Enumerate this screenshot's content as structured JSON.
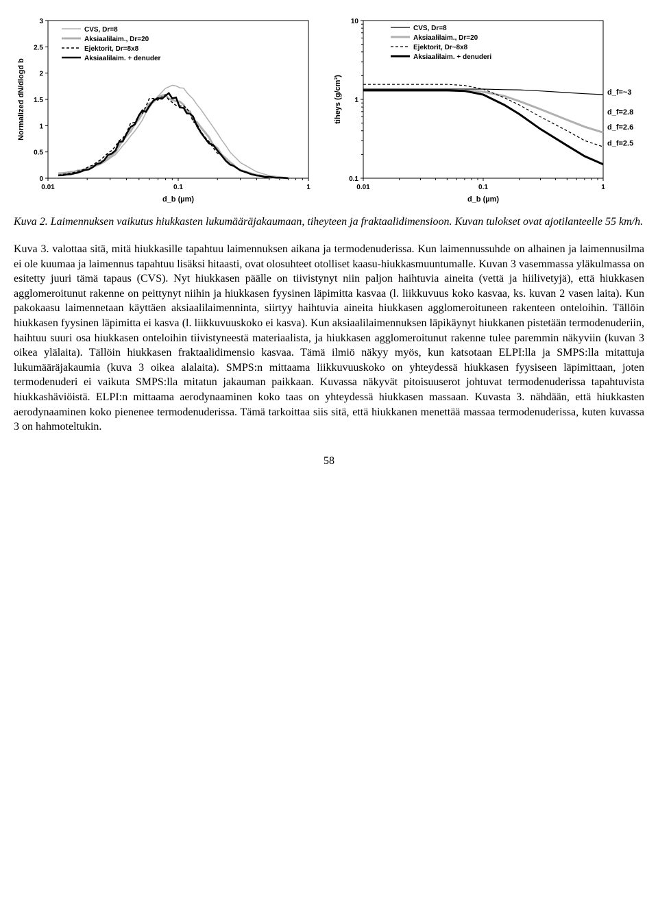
{
  "chart_left": {
    "type": "line",
    "ylabel": "Normalized dN/dlogd b",
    "xlabel": "d_b (µm)",
    "xlim_log": [
      0.01,
      1
    ],
    "ylim": [
      0,
      3
    ],
    "ytick_step": 0.5,
    "legend": [
      {
        "label": "CVS, Dr=8",
        "color": "#b0b0b0",
        "width": 1.5,
        "dash": ""
      },
      {
        "label": "Aksiaalilaim., Dr=20",
        "color": "#b0b0b0",
        "width": 3.0,
        "dash": ""
      },
      {
        "label": "Ejektorit, Dr=8x8",
        "color": "#000000",
        "width": 1.5,
        "dash": "4,3"
      },
      {
        "label": "Aksiaalilaim. + denuder",
        "color": "#000000",
        "width": 2.5,
        "dash": ""
      }
    ],
    "x_points": [
      0.012,
      0.015,
      0.018,
      0.022,
      0.027,
      0.033,
      0.04,
      0.05,
      0.06,
      0.075,
      0.09,
      0.11,
      0.13,
      0.16,
      0.2,
      0.25,
      0.3,
      0.4,
      0.5,
      0.7
    ],
    "series": {
      "cvs": [
        0.1,
        0.12,
        0.15,
        0.2,
        0.3,
        0.45,
        0.7,
        1.0,
        1.35,
        1.65,
        1.78,
        1.7,
        1.5,
        1.2,
        0.85,
        0.5,
        0.3,
        0.12,
        0.05,
        0.01
      ],
      "aks20": [
        0.08,
        0.12,
        0.15,
        0.22,
        0.35,
        0.5,
        0.8,
        1.1,
        1.4,
        1.55,
        1.52,
        1.4,
        1.15,
        0.85,
        0.55,
        0.3,
        0.15,
        0.06,
        0.02,
        0.0
      ],
      "ejekt": [
        0.06,
        0.1,
        0.15,
        0.25,
        0.4,
        0.6,
        0.9,
        1.2,
        1.45,
        1.55,
        1.5,
        1.35,
        1.1,
        0.8,
        0.5,
        0.28,
        0.14,
        0.05,
        0.02,
        0.0
      ],
      "denuder": [
        0.05,
        0.08,
        0.12,
        0.2,
        0.35,
        0.55,
        0.85,
        1.15,
        1.45,
        1.58,
        1.55,
        1.4,
        1.12,
        0.8,
        0.5,
        0.28,
        0.14,
        0.05,
        0.02,
        0.0
      ]
    },
    "noise": 0.15
  },
  "chart_right": {
    "type": "line-loglog",
    "ylabel": "tiheys (g/cm³)",
    "xlabel": "d_b (µm)",
    "xlim_log": [
      0.01,
      1
    ],
    "ylim_log": [
      0.1,
      10
    ],
    "legend": [
      {
        "label": "CVS, Dr=8",
        "color": "#000000",
        "width": 1.2,
        "dash": ""
      },
      {
        "label": "Aksiaalilaim., Dr=20",
        "color": "#b0b0b0",
        "width": 3.0,
        "dash": ""
      },
      {
        "label": "Ejektorit, Dr~8x8",
        "color": "#000000",
        "width": 1.2,
        "dash": "4,3"
      },
      {
        "label": "Aksiaalilaim. + denuderi",
        "color": "#000000",
        "width": 3.0,
        "dash": ""
      }
    ],
    "x_points": [
      0.01,
      0.015,
      0.02,
      0.03,
      0.05,
      0.07,
      0.1,
      0.15,
      0.2,
      0.3,
      0.5,
      0.7,
      1.0
    ],
    "series": {
      "cvs": [
        1.35,
        1.35,
        1.35,
        1.35,
        1.35,
        1.35,
        1.35,
        1.33,
        1.32,
        1.28,
        1.22,
        1.18,
        1.15
      ],
      "aks20": [
        1.3,
        1.3,
        1.3,
        1.3,
        1.3,
        1.3,
        1.25,
        1.1,
        0.95,
        0.75,
        0.55,
        0.45,
        0.38
      ],
      "ejekt": [
        1.55,
        1.55,
        1.55,
        1.55,
        1.55,
        1.5,
        1.35,
        1.05,
        0.85,
        0.6,
        0.4,
        0.3,
        0.25
      ],
      "denuder": [
        1.3,
        1.3,
        1.3,
        1.3,
        1.3,
        1.28,
        1.15,
        0.85,
        0.65,
        0.42,
        0.26,
        0.19,
        0.15
      ]
    },
    "annotations": [
      {
        "text": "d_f=~3",
        "y": 1.25
      },
      {
        "text": "d_f=2.8",
        "y": 0.7
      },
      {
        "text": "d_f=2.6",
        "y": 0.45
      },
      {
        "text": "d_f=2.5",
        "y": 0.28
      }
    ]
  },
  "caption": {
    "title": "Kuva 2.",
    "body": "Laimennuksen vaikutus hiukkasten lukumääräjakaumaan, tiheyteen ja fraktaalidimensioon. Kuvan tulokset ovat ajotilanteelle 55 km/h."
  },
  "paragraph": "Kuva 3. valottaa sitä, mitä hiukkasille tapahtuu laimennuksen aikana ja termodenuderissa. Kun laimennussuhde on alhainen ja laimennusilma ei ole kuumaa ja laimennus tapahtuu lisäksi hitaasti, ovat olosuhteet otolliset kaasu-hiukkasmuuntumalle. Kuvan 3 vasemmassa yläkulmassa on esitetty juuri tämä tapaus (CVS). Nyt hiukkasen päälle on tiivistynyt niin paljon haihtuvia aineita (vettä ja hiilivetyjä), että hiukkasen agglomeroitunut rakenne on peittynyt niihin ja hiukkasen fyysinen läpimitta kasvaa (l. liikkuvuus koko kasvaa, ks. kuvan 2 vasen laita). Kun pakokaasu laimennetaan käyttäen aksiaalilaimenninta, siirtyy haihtuvia aineita hiukkasen agglomeroituneen rakenteen onteloihin. Tällöin hiukkasen fyysinen läpimitta ei kasva (l. liikkuvuuskoko ei kasva). Kun aksiaalilaimennuksen läpikäynyt hiukkanen pistetään termodenuderiin, haihtuu suuri osa hiukkasen onteloihin tiivistyneestä materiaalista, ja hiukkasen agglomeroitunut rakenne tulee paremmin näkyviin (kuvan 3 oikea ylälaita). Tällöin hiukkasen fraktaalidimensio kasvaa. Tämä ilmiö näkyy myös, kun katsotaan ELPI:lla ja SMPS:lla mitattuja lukumääräjakaumia (kuva 3 oikea alalaita). SMPS:n mittaama liikkuvuuskoko on yhteydessä hiukkasen fyysiseen läpimittaan, joten termodenuderi ei vaikuta SMPS:lla mitatun jakauman paikkaan. Kuvassa näkyvät pitoisuuserot johtuvat termodenuderissa tapahtuvista hiukkashäviöistä. ELPI:n mittaama aerodynaaminen koko taas on yhteydessä hiukkasen massaan. Kuvasta 3. nähdään, että hiukkasten aerodynaaminen koko pienenee termodenuderissa. Tämä tarkoittaa siis sitä, että hiukkanen menettää massaa termodenuderissa, kuten kuvassa 3 on hahmoteltukin.",
  "page_number": "58"
}
